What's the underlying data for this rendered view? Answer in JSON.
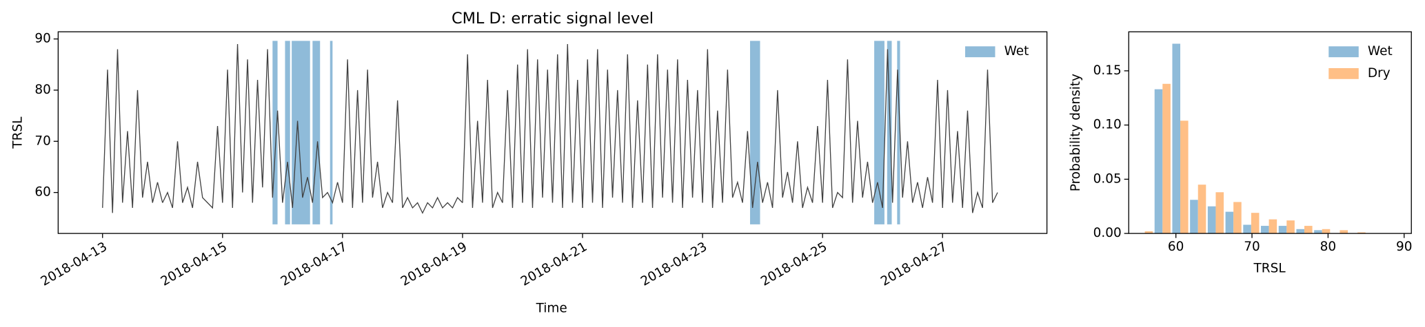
{
  "chart_data": [
    {
      "type": "line",
      "title": "CML D: erratic signal level",
      "x_label": "Time",
      "y_label": "TRSL",
      "x": [
        "2018-04-13",
        "2018-04-14",
        "2018-04-15",
        "2018-04-16",
        "2018-04-17",
        "2018-04-18",
        "2018-04-19",
        "2018-04-20",
        "2018-04-21",
        "2018-04-22",
        "2018-04-23",
        "2018-04-24",
        "2018-04-25",
        "2018-04-26",
        "2018-04-27"
      ],
      "series": [
        {
          "name": "TRSL",
          "color": "#404040",
          "values": [
            [
              57,
              84,
              56,
              88,
              58,
              72,
              57,
              80,
              59,
              66,
              58,
              62
            ],
            [
              58,
              60,
              57,
              70,
              58,
              61,
              57,
              66,
              59,
              58,
              57,
              73
            ],
            [
              58,
              84,
              57,
              89,
              60,
              86,
              58,
              82,
              61,
              88,
              59,
              76
            ],
            [
              58,
              66,
              57,
              74,
              59,
              63,
              58,
              70,
              59,
              60,
              58,
              62
            ],
            [
              58,
              86,
              57,
              80,
              58,
              84,
              59,
              66,
              57,
              60,
              58,
              78
            ],
            [
              57,
              59,
              57,
              58,
              56,
              58,
              57,
              59,
              57,
              58,
              57,
              59
            ],
            [
              58,
              87,
              57,
              74,
              58,
              82,
              57,
              60,
              58,
              80,
              57,
              85
            ],
            [
              58,
              88,
              57,
              86,
              59,
              84,
              58,
              87,
              57,
              89,
              58,
              82
            ],
            [
              57,
              86,
              58,
              88,
              57,
              84,
              59,
              80,
              58,
              87,
              57,
              78
            ],
            [
              58,
              85,
              57,
              87,
              59,
              84,
              58,
              86,
              57,
              82,
              59,
              80
            ],
            [
              58,
              88,
              57,
              76,
              58,
              84,
              59,
              62,
              58,
              72,
              57,
              66
            ],
            [
              58,
              62,
              57,
              80,
              59,
              64,
              58,
              70,
              57,
              61,
              58,
              73
            ],
            [
              58,
              82,
              57,
              60,
              59,
              86,
              58,
              74,
              59,
              66,
              58,
              62
            ],
            [
              57,
              88,
              58,
              84,
              59,
              70,
              58,
              62,
              57,
              63,
              58,
              82
            ],
            [
              57,
              80,
              58,
              72,
              57,
              76,
              56,
              60,
              57,
              84,
              58,
              60
            ]
          ]
        }
      ],
      "wet": {
        "name": "Wet",
        "color": "#8fbbd9",
        "spans": [
          [
            "2018-04-15 20:00",
            "2018-04-15 22:00"
          ],
          [
            "2018-04-16 01:00",
            "2018-04-16 03:00"
          ],
          [
            "2018-04-16 03:40",
            "2018-04-16 11:00"
          ],
          [
            "2018-04-16 12:00",
            "2018-04-16 15:00"
          ],
          [
            "2018-04-16 19:00",
            "2018-04-16 20:00"
          ],
          [
            "2018-04-23 19:00",
            "2018-04-23 23:00"
          ],
          [
            "2018-04-25 20:40",
            "2018-04-26 00:45"
          ],
          [
            "2018-04-26 01:50",
            "2018-04-26 03:40"
          ],
          [
            "2018-04-26 05:50",
            "2018-04-26 07:00"
          ]
        ]
      },
      "xlim": [
        "2018-04-12 06:15",
        "2018-04-28 17:45"
      ],
      "xticks": [
        "2018-04-13",
        "2018-04-15",
        "2018-04-17",
        "2018-04-19",
        "2018-04-21",
        "2018-04-23",
        "2018-04-25",
        "2018-04-27"
      ],
      "ylim": [
        52,
        91.4
      ],
      "yticks": [
        60,
        70,
        80,
        90
      ],
      "legend": "upper right"
    },
    {
      "type": "histogram",
      "x_label": "TRSL",
      "y_label": "Probability density",
      "bins": [
        54.75,
        57.08,
        59.41,
        61.74,
        64.07,
        66.4,
        68.73,
        71.06,
        73.39,
        75.72,
        78.05,
        80.38,
        82.71,
        85.04,
        87.37,
        89.7
      ],
      "series": [
        {
          "name": "Wet",
          "color": "#8fbbd9",
          "values": [
            0,
            0.133,
            0.175,
            0.031,
            0.025,
            0.02,
            0.008,
            0.007,
            0.007,
            0.004,
            0.003,
            0,
            0,
            0,
            0
          ]
        },
        {
          "name": "Dry",
          "color": "#ffbf86",
          "values": [
            0.002,
            0.138,
            0.104,
            0.045,
            0.038,
            0.029,
            0.019,
            0.013,
            0.012,
            0.007,
            0.004,
            0.003,
            0.001,
            0,
            0
          ]
        }
      ],
      "xlim": [
        53.8,
        90.95
      ],
      "xticks": [
        60,
        70,
        80,
        90
      ],
      "ylim": [
        0,
        0.186
      ],
      "yticks": [
        {
          "value": 0,
          "label": "0.00"
        },
        {
          "value": 0.05,
          "label": "0.05"
        },
        {
          "value": 0.1,
          "label": "0.10"
        },
        {
          "value": 0.15,
          "label": "0.15"
        }
      ],
      "legend": "upper right"
    }
  ]
}
